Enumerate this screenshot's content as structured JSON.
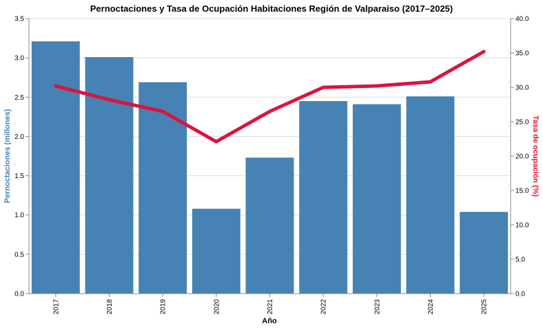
{
  "chart_data": {
    "type": "bar+line",
    "title": "Pernoctaciones y Tasa de Ocupación Habitaciones Región de Valparaiso (2017–2025)",
    "xlabel": "Año",
    "categories": [
      "2017",
      "2018",
      "2019",
      "2020",
      "2021",
      "2022",
      "2023",
      "2024",
      "2025"
    ],
    "series": [
      {
        "name": "Pernoctaciones (millones)",
        "type": "bar",
        "axis": "left",
        "values": [
          3.21,
          3.01,
          2.69,
          1.08,
          1.73,
          2.45,
          2.41,
          2.51,
          1.04
        ]
      },
      {
        "name": "Tasa de ocupación (%)",
        "type": "line",
        "axis": "right",
        "values": [
          30.2,
          28.2,
          26.5,
          22.1,
          26.5,
          30.0,
          30.2,
          30.8,
          35.2
        ]
      }
    ],
    "y_left": {
      "label": "Pernoctaciones (millones)",
      "lim": [
        0,
        3.5
      ],
      "ticks": [
        "0.0",
        "0.5",
        "1.0",
        "1.5",
        "2.0",
        "2.5",
        "3.0",
        "3.5"
      ],
      "color": "#4682b4"
    },
    "y_right": {
      "label": "Tasa de ocupación (%)",
      "lim": [
        0,
        40
      ],
      "ticks": [
        "0.0",
        "5.0",
        "10.0",
        "15.0",
        "20.0",
        "25.0",
        "30.0",
        "35.0",
        "40.0"
      ],
      "color": "#dc143c"
    },
    "grid": true,
    "colors": {
      "bar": "#4682b4",
      "line": "#dc143c"
    }
  }
}
